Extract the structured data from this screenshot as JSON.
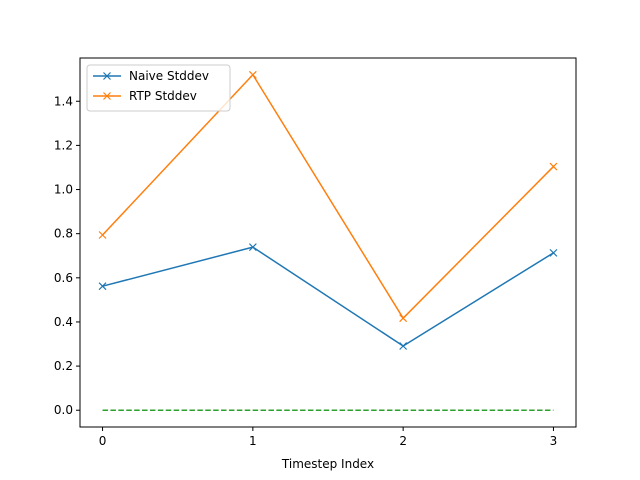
{
  "chart_data": {
    "type": "line",
    "title": "",
    "xlabel": "Timestep Index",
    "ylabel": "",
    "x": [
      0,
      1,
      2,
      3
    ],
    "xticks": [
      "0",
      "1",
      "2",
      "3"
    ],
    "yticks": [
      "0.0",
      "0.2",
      "0.4",
      "0.6",
      "0.8",
      "1.0",
      "1.2",
      "1.4"
    ],
    "xlim": [
      -0.15,
      3.15
    ],
    "ylim": [
      -0.076,
      1.596
    ],
    "grid": false,
    "legend_position": "upper-left",
    "series": [
      {
        "name": "Naive Stddev",
        "values": [
          0.562,
          0.739,
          0.291,
          0.713
        ],
        "color": "#1f77b4",
        "marker": "x",
        "linestyle": "solid"
      },
      {
        "name": "RTP Stddev",
        "values": [
          0.794,
          1.52,
          0.417,
          1.104
        ],
        "color": "#ff7f0e",
        "marker": "x",
        "linestyle": "solid"
      },
      {
        "values": [
          0.0,
          0.0,
          0.0,
          0.0
        ],
        "color": "#2ca02c",
        "marker": "none",
        "linestyle": "dashed"
      }
    ]
  }
}
